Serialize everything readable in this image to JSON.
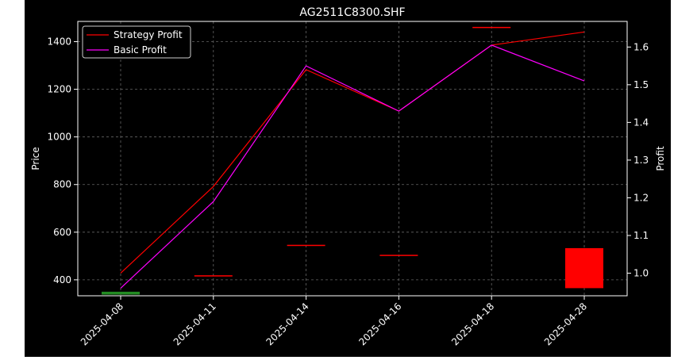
{
  "chart_data": {
    "type": "candlestick+line",
    "title": "AG2511C8300.SHF",
    "xlabel": "",
    "ylabel": "Price",
    "y2label": "Profit",
    "categories": [
      "2025-04-08",
      "2025-04-11",
      "2025-04-14",
      "2025-04-16",
      "2025-04-18",
      "2025-04-28"
    ],
    "ylim": [
      333,
      1485
    ],
    "y2lim": [
      0.94,
      1.668
    ],
    "yticks": [
      400,
      600,
      800,
      1000,
      1200,
      1400
    ],
    "y2ticks": [
      "1.0",
      "1.1",
      "1.2",
      "1.3",
      "1.4",
      "1.5",
      "1.6"
    ],
    "grid": true,
    "legend_position": "top-left",
    "candles": [
      {
        "date": "2025-04-08",
        "open": 338,
        "close": 350,
        "color": "#228B22"
      },
      {
        "date": "2025-04-11",
        "open": 419,
        "close": 414,
        "color": "#ff0000"
      },
      {
        "date": "2025-04-14",
        "open": 547,
        "close": 545,
        "color": "#ff0000"
      },
      {
        "date": "2025-04-16",
        "open": 505,
        "close": 503,
        "color": "#ff0000"
      },
      {
        "date": "2025-04-18",
        "open": 1462,
        "close": 1460,
        "color": "#ff0000"
      },
      {
        "date": "2025-04-28",
        "open": 533,
        "close": 365,
        "color": "#ff0000"
      }
    ],
    "series": [
      {
        "name": "Strategy Profit",
        "color": "#ff0000",
        "values": [
          1.0,
          1.23,
          1.54,
          1.43,
          1.605,
          1.64
        ]
      },
      {
        "name": "Basic Profit",
        "color": "#ff00ff",
        "values": [
          0.96,
          1.19,
          1.55,
          1.43,
          1.605,
          1.51
        ]
      }
    ]
  }
}
